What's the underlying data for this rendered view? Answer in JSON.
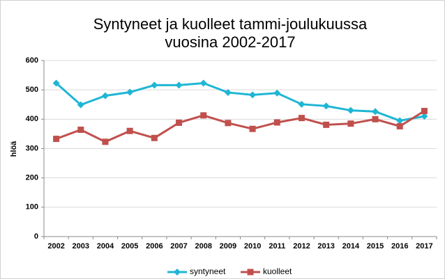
{
  "chart_data": {
    "type": "line",
    "title": [
      "Syntyneet ja kuolleet tammi-joulukuussa",
      "vuosina 2002-2017"
    ],
    "y_label": "hlöä",
    "categories": [
      "2002",
      "2003",
      "2004",
      "2005",
      "2006",
      "2007",
      "2008",
      "2009",
      "2010",
      "2011",
      "2012",
      "2013",
      "2014",
      "2015",
      "2016",
      "2017"
    ],
    "series": [
      {
        "name": "syntyneet",
        "color": "#1fb6d4",
        "marker": "diamond",
        "values": [
          523,
          449,
          480,
          492,
          516,
          516,
          523,
          491,
          483,
          489,
          451,
          445,
          430,
          426,
          395,
          410
        ]
      },
      {
        "name": "kuolleet",
        "color": "#c0504d",
        "marker": "square",
        "values": [
          333,
          364,
          323,
          360,
          336,
          388,
          413,
          387,
          367,
          389,
          404,
          381,
          385,
          400,
          376,
          428
        ]
      }
    ],
    "ylim": [
      0,
      600
    ],
    "yticks": [
      0,
      100,
      200,
      300,
      400,
      500,
      600
    ],
    "grid": true,
    "legend": "bottom"
  }
}
